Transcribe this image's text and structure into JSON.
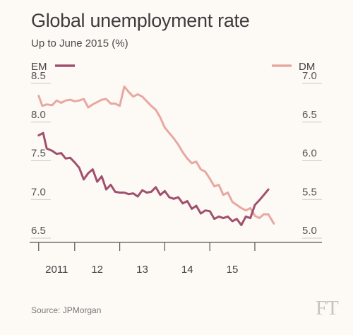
{
  "chart_data": {
    "type": "line",
    "title": "Global unemployment rate",
    "subtitle": "Up to June 2015 (%)",
    "source": "Source: JPMorgan",
    "logo": "FT",
    "grid": false,
    "x_tick_labels": [
      "2011",
      "12",
      "13",
      "14",
      "15"
    ],
    "x_ticks": [
      2010.2,
      2011.0,
      2012.0,
      2013.0,
      2014.0,
      2015.0
    ],
    "xlim": [
      2010.0,
      2015.8
    ],
    "left_axis": {
      "ylim": [
        6.5,
        8.5
      ],
      "ticks": [
        "6.5",
        "7.0",
        "7.5",
        "8.0",
        "8.5"
      ]
    },
    "right_axis": {
      "ylim": [
        5.0,
        7.0
      ],
      "ticks": [
        "5.0",
        "5.5",
        "6.0",
        "6.5",
        "7.0"
      ]
    },
    "colors": {
      "EM": "#a0506e",
      "DM": "#e8a8a2"
    },
    "series": [
      {
        "name": "EM",
        "axis": "left",
        "legend_position": "top-left",
        "x": [
          2010.2,
          2010.3,
          2010.38,
          2010.5,
          2010.6,
          2010.7,
          2010.8,
          2010.9,
          2011.0,
          2011.1,
          2011.2,
          2011.3,
          2011.4,
          2011.5,
          2011.6,
          2011.7,
          2011.8,
          2011.9,
          2012.0,
          2012.1,
          2012.2,
          2012.3,
          2012.4,
          2012.5,
          2012.6,
          2012.7,
          2012.8,
          2012.9,
          2013.0,
          2013.1,
          2013.2,
          2013.3,
          2013.4,
          2013.5,
          2013.6,
          2013.7,
          2013.8,
          2013.9,
          2014.0,
          2014.1,
          2014.2,
          2014.3,
          2014.4,
          2014.5,
          2014.6,
          2014.7,
          2014.8,
          2014.9,
          2015.0,
          2015.1,
          2015.2,
          2015.3
        ],
        "values": [
          7.82,
          7.85,
          7.65,
          7.62,
          7.58,
          7.59,
          7.52,
          7.53,
          7.47,
          7.4,
          7.25,
          7.33,
          7.38,
          7.22,
          7.29,
          7.12,
          7.18,
          7.09,
          7.08,
          7.08,
          7.06,
          7.07,
          7.03,
          7.11,
          7.08,
          7.09,
          7.15,
          7.05,
          7.1,
          7.02,
          7.0,
          7.02,
          6.94,
          6.97,
          6.87,
          6.91,
          6.81,
          6.85,
          6.84,
          6.74,
          6.77,
          6.75,
          6.77,
          6.71,
          6.74,
          6.66,
          6.77,
          6.75,
          6.92,
          6.98,
          7.05,
          7.12
        ]
      },
      {
        "name": "DM",
        "axis": "right",
        "legend_position": "top-right",
        "x": [
          2010.2,
          2010.28,
          2010.38,
          2010.5,
          2010.6,
          2010.7,
          2010.8,
          2010.9,
          2011.0,
          2011.1,
          2011.2,
          2011.3,
          2011.4,
          2011.5,
          2011.6,
          2011.7,
          2011.8,
          2011.9,
          2012.0,
          2012.1,
          2012.2,
          2012.3,
          2012.4,
          2012.5,
          2012.6,
          2012.7,
          2012.8,
          2012.9,
          2013.0,
          2013.1,
          2013.2,
          2013.3,
          2013.4,
          2013.5,
          2013.6,
          2013.7,
          2013.8,
          2013.9,
          2014.0,
          2014.1,
          2014.2,
          2014.3,
          2014.4,
          2014.5,
          2014.6,
          2014.7,
          2014.8,
          2014.9,
          2015.0,
          2015.1,
          2015.2,
          2015.3,
          2015.42
        ],
        "values": [
          6.83,
          6.7,
          6.72,
          6.71,
          6.77,
          6.74,
          6.77,
          6.78,
          6.76,
          6.77,
          6.79,
          6.68,
          6.72,
          6.75,
          6.78,
          6.79,
          6.73,
          6.73,
          6.7,
          6.95,
          6.88,
          6.82,
          6.85,
          6.82,
          6.76,
          6.7,
          6.65,
          6.55,
          6.42,
          6.35,
          6.28,
          6.2,
          6.1,
          6.02,
          5.96,
          5.98,
          5.88,
          5.85,
          5.76,
          5.66,
          5.68,
          5.55,
          5.58,
          5.46,
          5.42,
          5.38,
          5.35,
          5.38,
          5.28,
          5.25,
          5.3,
          5.3,
          5.18
        ]
      }
    ]
  }
}
